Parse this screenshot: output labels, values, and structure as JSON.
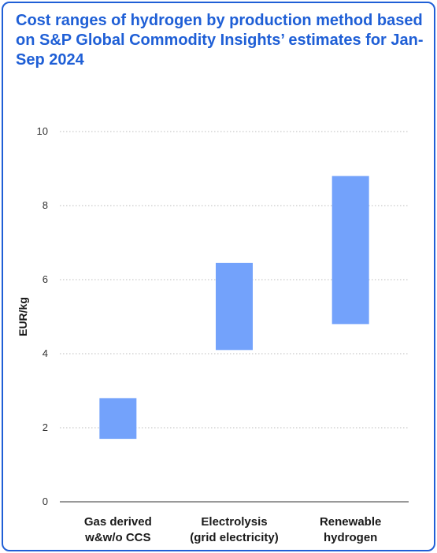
{
  "title": "Cost ranges of hydrogen by production method based on S&P Global Commodity Insights’ estimates for Jan-Sep 2024",
  "colors": {
    "accent": "#1f5fd6",
    "bar": "#73a2fb",
    "grid": "#bdbdbd",
    "axis": "#333333"
  },
  "chart_data": {
    "type": "bar",
    "subtype": "floating-range",
    "title": "Cost ranges of hydrogen by production method based on S&P Global Commodity Insights’ estimates for Jan-Sep 2024",
    "xlabel": "",
    "ylabel": "EUR/kg",
    "ylim": [
      0,
      10
    ],
    "yticks": [
      0,
      2,
      4,
      6,
      8,
      10
    ],
    "grid": true,
    "grid_style": "dotted",
    "legend": "none",
    "categories": [
      [
        "Gas derived",
        "w&w/o CCS"
      ],
      [
        "Electrolysis",
        "(grid electricity)"
      ],
      [
        "Renewable",
        "hydrogen"
      ]
    ],
    "ranges": [
      {
        "low": 1.7,
        "high": 2.8
      },
      {
        "low": 4.1,
        "high": 6.45
      },
      {
        "low": 4.8,
        "high": 8.8
      }
    ]
  }
}
